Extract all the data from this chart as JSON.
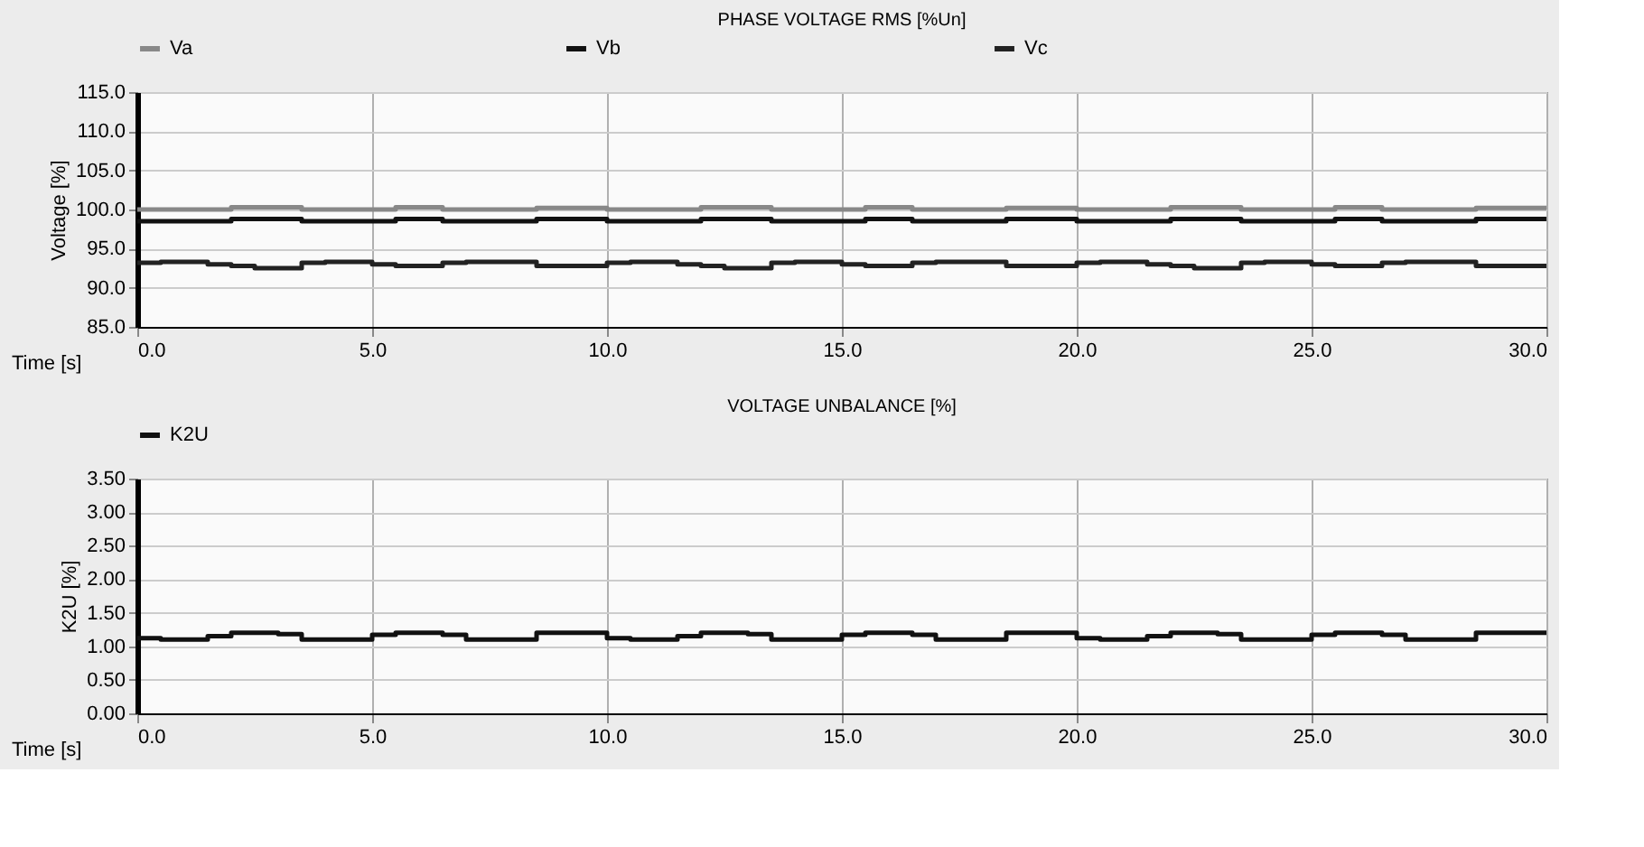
{
  "chart_data": [
    {
      "type": "step",
      "title": "PHASE VOLTAGE RMS [%Un]",
      "xlabel": "Time [s]",
      "ylabel": "Voltage [%]",
      "x": [
        0,
        0.5,
        1,
        1.5,
        2,
        2.5,
        3,
        3.5,
        4,
        4.5,
        5,
        5.5,
        6,
        6.5,
        7,
        7.5,
        8,
        8.5,
        9,
        9.5,
        10,
        10.5,
        11,
        11.5,
        12,
        12.5,
        13,
        13.5,
        14,
        14.5,
        15,
        15.5,
        16,
        16.5,
        17,
        17.5,
        18,
        18.5,
        19,
        19.5,
        20,
        20.5,
        21,
        21.5,
        22,
        22.5,
        23,
        23.5,
        24,
        24.5,
        25,
        25.5,
        26,
        26.5,
        27,
        27.5,
        28,
        28.5,
        29,
        29.5,
        30
      ],
      "series": [
        {
          "name": "Va",
          "color": "#888888",
          "values": [
            100.0,
            100.0,
            100.0,
            100.0,
            100.3,
            100.3,
            100.3,
            100.0,
            100.0,
            100.0,
            100.0,
            100.3,
            100.3,
            100.0,
            100.0,
            100.0,
            100.0,
            100.2,
            100.2,
            100.2,
            100.0,
            100.0,
            100.0,
            100.0,
            100.3,
            100.3,
            100.3,
            100.0,
            100.0,
            100.0,
            100.0,
            100.3,
            100.3,
            100.0,
            100.0,
            100.0,
            100.0,
            100.2,
            100.2,
            100.2,
            100.0,
            100.0,
            100.0,
            100.0,
            100.3,
            100.3,
            100.3,
            100.0,
            100.0,
            100.0,
            100.0,
            100.3,
            100.3,
            100.0,
            100.0,
            100.0,
            100.0,
            100.2,
            100.2,
            100.2,
            100.2
          ]
        },
        {
          "name": "Vb",
          "color": "#111111",
          "values": [
            98.5,
            98.5,
            98.5,
            98.5,
            98.8,
            98.8,
            98.8,
            98.5,
            98.5,
            98.5,
            98.5,
            98.8,
            98.8,
            98.5,
            98.5,
            98.5,
            98.5,
            98.8,
            98.8,
            98.8,
            98.5,
            98.5,
            98.5,
            98.5,
            98.8,
            98.8,
            98.8,
            98.5,
            98.5,
            98.5,
            98.5,
            98.8,
            98.8,
            98.5,
            98.5,
            98.5,
            98.5,
            98.8,
            98.8,
            98.8,
            98.5,
            98.5,
            98.5,
            98.5,
            98.8,
            98.8,
            98.8,
            98.5,
            98.5,
            98.5,
            98.5,
            98.8,
            98.8,
            98.5,
            98.5,
            98.5,
            98.5,
            98.8,
            98.8,
            98.8,
            98.8
          ]
        },
        {
          "name": "Vc",
          "color": "#222222",
          "values": [
            93.2,
            93.3,
            93.3,
            93.0,
            92.8,
            92.5,
            92.5,
            93.2,
            93.3,
            93.3,
            93.0,
            92.8,
            92.8,
            93.2,
            93.3,
            93.3,
            93.3,
            92.8,
            92.8,
            92.8,
            93.2,
            93.3,
            93.3,
            93.0,
            92.8,
            92.5,
            92.5,
            93.2,
            93.3,
            93.3,
            93.0,
            92.8,
            92.8,
            93.2,
            93.3,
            93.3,
            93.3,
            92.8,
            92.8,
            92.8,
            93.2,
            93.3,
            93.3,
            93.0,
            92.8,
            92.5,
            92.5,
            93.2,
            93.3,
            93.3,
            93.0,
            92.8,
            92.8,
            93.2,
            93.3,
            93.3,
            93.3,
            92.8,
            92.8,
            92.8,
            92.8
          ]
        }
      ],
      "xlim": [
        0,
        30
      ],
      "xticks": [
        {
          "value": 0,
          "label": "0.0"
        },
        {
          "value": 5,
          "label": "5.0"
        },
        {
          "value": 10,
          "label": "10.0"
        },
        {
          "value": 15,
          "label": "15.0"
        },
        {
          "value": 20,
          "label": "20.0"
        },
        {
          "value": 25,
          "label": "25.0"
        },
        {
          "value": 30,
          "label": "30.0"
        }
      ],
      "ylim": [
        85,
        115
      ],
      "yticks": [
        {
          "value": 85,
          "label": "85.0"
        },
        {
          "value": 90,
          "label": "90.0"
        },
        {
          "value": 95,
          "label": "95.0"
        },
        {
          "value": 100,
          "label": "100.0"
        },
        {
          "value": 105,
          "label": "105.0"
        },
        {
          "value": 110,
          "label": "110.0"
        },
        {
          "value": 115,
          "label": "115.0"
        }
      ],
      "grid": true,
      "legend": "top",
      "marker": "none",
      "line_style": "solid"
    },
    {
      "type": "step",
      "title": "VOLTAGE UNBALANCE  [%]",
      "xlabel": "Time [s]",
      "ylabel": "K2U [%]",
      "x": [
        0,
        0.5,
        1,
        1.5,
        2,
        2.5,
        3,
        3.5,
        4,
        4.5,
        5,
        5.5,
        6,
        6.5,
        7,
        7.5,
        8,
        8.5,
        9,
        9.5,
        10,
        10.5,
        11,
        11.5,
        12,
        12.5,
        13,
        13.5,
        14,
        14.5,
        15,
        15.5,
        16,
        16.5,
        17,
        17.5,
        18,
        18.5,
        19,
        19.5,
        20,
        20.5,
        21,
        21.5,
        22,
        22.5,
        23,
        23.5,
        24,
        24.5,
        25,
        25.5,
        26,
        26.5,
        27,
        27.5,
        28,
        28.5,
        29,
        29.5,
        30
      ],
      "series": [
        {
          "name": "K2U",
          "color": "#111111",
          "values": [
            1.12,
            1.1,
            1.1,
            1.15,
            1.2,
            1.2,
            1.18,
            1.1,
            1.1,
            1.1,
            1.17,
            1.2,
            1.2,
            1.17,
            1.1,
            1.1,
            1.1,
            1.2,
            1.2,
            1.2,
            1.12,
            1.1,
            1.1,
            1.15,
            1.2,
            1.2,
            1.18,
            1.1,
            1.1,
            1.1,
            1.17,
            1.2,
            1.2,
            1.17,
            1.1,
            1.1,
            1.1,
            1.2,
            1.2,
            1.2,
            1.12,
            1.1,
            1.1,
            1.15,
            1.2,
            1.2,
            1.18,
            1.1,
            1.1,
            1.1,
            1.17,
            1.2,
            1.2,
            1.17,
            1.1,
            1.1,
            1.1,
            1.2,
            1.2,
            1.2,
            1.2
          ]
        }
      ],
      "xlim": [
        0,
        30
      ],
      "xticks": [
        {
          "value": 0,
          "label": "0.0"
        },
        {
          "value": 5,
          "label": "5.0"
        },
        {
          "value": 10,
          "label": "10.0"
        },
        {
          "value": 15,
          "label": "15.0"
        },
        {
          "value": 20,
          "label": "20.0"
        },
        {
          "value": 25,
          "label": "25.0"
        },
        {
          "value": 30,
          "label": "30.0"
        }
      ],
      "ylim": [
        0,
        3.5
      ],
      "yticks": [
        {
          "value": 0,
          "label": "0.00"
        },
        {
          "value": 0.5,
          "label": "0.50"
        },
        {
          "value": 1,
          "label": "1.00"
        },
        {
          "value": 1.5,
          "label": "1.50"
        },
        {
          "value": 2,
          "label": "2.00"
        },
        {
          "value": 2.5,
          "label": "2.50"
        },
        {
          "value": 3,
          "label": "3.00"
        },
        {
          "value": 3.5,
          "label": "3.50"
        }
      ],
      "grid": true,
      "legend": "top",
      "marker": "none",
      "line_style": "solid"
    }
  ]
}
